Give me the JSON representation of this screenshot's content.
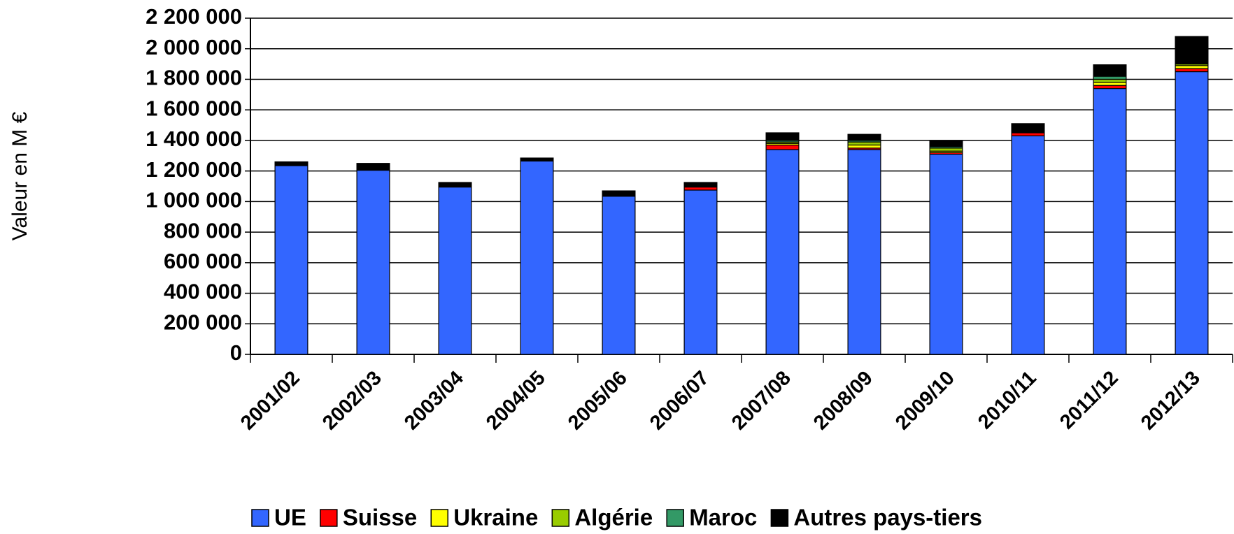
{
  "chart_data": {
    "type": "stacked-bar",
    "y_label": "Valeur en M €",
    "categories": [
      "2001/02",
      "2002/03",
      "2003/04",
      "2004/05",
      "2005/06",
      "2006/07",
      "2007/08",
      "2008/09",
      "2009/10",
      "2010/11",
      "2011/12",
      "2012/13"
    ],
    "series": [
      {
        "name": "UE",
        "color": "#3366ff",
        "values": [
          1235000,
          1205000,
          1095000,
          1265000,
          1035000,
          1075000,
          1340000,
          1340000,
          1310000,
          1430000,
          1740000,
          1850000
        ]
      },
      {
        "name": "Suisse",
        "color": "#ff0000",
        "values": [
          5000,
          5000,
          0,
          0,
          0,
          20000,
          30000,
          10000,
          10000,
          20000,
          20000,
          20000
        ]
      },
      {
        "name": "Ukraine",
        "color": "#ffff00",
        "values": [
          0,
          0,
          0,
          0,
          0,
          5000,
          10000,
          20000,
          10000,
          0,
          20000,
          20000
        ]
      },
      {
        "name": "Algérie",
        "color": "#99cc00",
        "values": [
          0,
          0,
          0,
          0,
          0,
          0,
          10000,
          20000,
          20000,
          0,
          20000,
          10000
        ]
      },
      {
        "name": "Maroc",
        "color": "#339966",
        "values": [
          0,
          0,
          0,
          0,
          0,
          0,
          10000,
          10000,
          10000,
          0,
          20000,
          0
        ]
      },
      {
        "name": "Autres pays-tiers",
        "color": "#000000",
        "values": [
          20000,
          40000,
          30000,
          20000,
          35000,
          25000,
          50000,
          40000,
          40000,
          60000,
          75000,
          180000
        ]
      }
    ],
    "ylim": [
      0,
      2200000
    ],
    "yticks": [
      0,
      {
        "value": 200000,
        "label": "200 000"
      },
      {
        "value": 400000,
        "label": "400 000"
      },
      {
        "value": 600000,
        "label": "600 000"
      },
      {
        "value": 800000,
        "label": "800 000"
      },
      {
        "value": 1000000,
        "label": "1 000 000"
      },
      {
        "value": 1200000,
        "label": "1 200 000"
      },
      {
        "value": 1400000,
        "label": "1 400 000"
      },
      {
        "value": 1600000,
        "label": "1 600 000"
      },
      {
        "value": 1800000,
        "label": "1 800 000"
      },
      {
        "value": 2000000,
        "label": "2 000 000"
      },
      {
        "value": 2200000,
        "label": "2 200 000"
      }
    ],
    "grid": true,
    "legend": "bottom"
  }
}
